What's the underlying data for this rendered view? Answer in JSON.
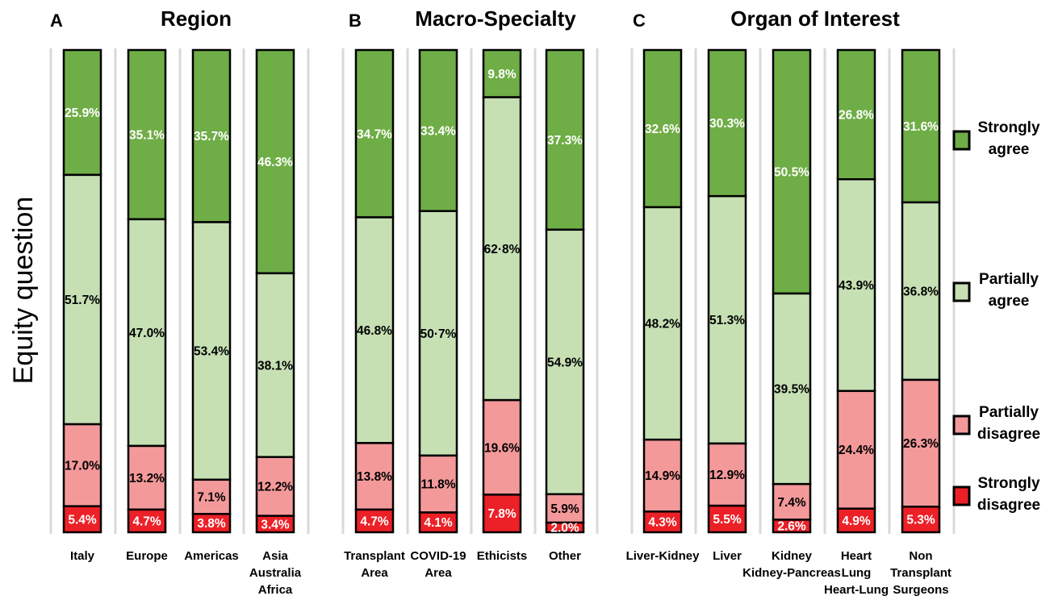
{
  "colors": {
    "strongly_agree": "#6fad46",
    "partially_agree": "#c6e0b4",
    "partially_disagree": "#f4999a",
    "strongly_disagree": "#ec2027",
    "separator": "#d9d9d9",
    "outline": "#000000"
  },
  "chart_data": {
    "type": "stacked-bar",
    "ylabel": "Equity question",
    "series": [
      {
        "key": "strongly_agree",
        "name": "Strongly agree",
        "label_color": "#ffffff"
      },
      {
        "key": "partially_agree",
        "name": "Partially agree",
        "label_color": "#000000"
      },
      {
        "key": "partially_disagree",
        "name": "Partially disagree",
        "label_color": "#000000"
      },
      {
        "key": "strongly_disagree",
        "name": "Strongly disagree",
        "label_color": "#ffffff"
      }
    ],
    "panels": [
      {
        "letter": "A",
        "title": "Region",
        "bars": [
          {
            "category": [
              "Italy"
            ],
            "values": [
              25.9,
              51.7,
              17.0,
              5.4
            ],
            "labels": [
              "25.9%",
              "51.7%",
              "17.0%",
              "5.4%"
            ]
          },
          {
            "category": [
              "Europe"
            ],
            "values": [
              35.1,
              47.0,
              13.2,
              4.7
            ],
            "labels": [
              "35.1%",
              "47.0%",
              "13.2%",
              "4.7%"
            ]
          },
          {
            "category": [
              "Americas"
            ],
            "values": [
              35.7,
              53.4,
              7.1,
              3.8
            ],
            "labels": [
              "35.7%",
              "53.4%",
              "7.1%",
              "3.8%"
            ]
          },
          {
            "category": [
              "Asia",
              "Australia",
              "Africa"
            ],
            "values": [
              46.3,
              38.1,
              12.2,
              3.4
            ],
            "labels": [
              "46.3%",
              "38.1%",
              "12.2%",
              "3.4%"
            ]
          }
        ]
      },
      {
        "letter": "B",
        "title": "Macro-Specialty",
        "bars": [
          {
            "category": [
              "Transplant",
              "Area"
            ],
            "values": [
              34.7,
              46.8,
              13.8,
              4.7
            ],
            "labels": [
              "34.7%",
              "46.8%",
              "13.8%",
              "4.7%"
            ]
          },
          {
            "category": [
              "COVID-19",
              "Area"
            ],
            "values": [
              33.4,
              50.7,
              11.8,
              4.1
            ],
            "labels": [
              "33.4%",
              "50·7%",
              "11.8%",
              "4.1%"
            ]
          },
          {
            "category": [
              "Ethicists"
            ],
            "values": [
              9.8,
              62.8,
              19.6,
              7.8
            ],
            "labels": [
              "9.8%",
              "62·8%",
              "19.6%",
              "7.8%"
            ]
          },
          {
            "category": [
              "Other"
            ],
            "values": [
              37.3,
              54.9,
              5.9,
              2.0
            ],
            "labels": [
              "37.3%",
              "54.9%",
              "5.9%",
              "2.0%"
            ]
          }
        ]
      },
      {
        "letter": "C",
        "title": "Organ of Interest",
        "bars": [
          {
            "category": [
              "Liver-Kidney"
            ],
            "values": [
              32.6,
              48.2,
              14.9,
              4.3
            ],
            "labels": [
              "32.6%",
              "48.2%",
              "14.9%",
              "4.3%"
            ]
          },
          {
            "category": [
              "Liver"
            ],
            "values": [
              30.3,
              51.3,
              12.9,
              5.5
            ],
            "labels": [
              "30.3%",
              "51.3%",
              "12.9%",
              "5.5%"
            ]
          },
          {
            "category": [
              "Kidney",
              "Kidney-Pancreas"
            ],
            "values": [
              50.5,
              39.5,
              7.4,
              2.6
            ],
            "labels": [
              "50.5%",
              "39.5%",
              "7.4%",
              "2.6%"
            ]
          },
          {
            "category": [
              "Heart",
              "Lung",
              "Heart-Lung"
            ],
            "values": [
              26.8,
              43.9,
              24.4,
              4.9
            ],
            "labels": [
              "26.8%",
              "43.9%",
              "24.4%",
              "4.9%"
            ]
          },
          {
            "category": [
              "Non",
              "Transplant",
              "Surgeons"
            ],
            "values": [
              31.6,
              36.8,
              26.3,
              5.3
            ],
            "labels": [
              "31.6%",
              "36.8%",
              "26.3%",
              "5.3%"
            ]
          }
        ]
      }
    ],
    "legend": {
      "placement": "right",
      "items": [
        {
          "key": "strongly_agree",
          "lines": [
            "Strongly",
            "agree"
          ]
        },
        {
          "key": "partially_agree",
          "lines": [
            "Partially",
            "agree"
          ]
        },
        {
          "key": "partially_disagree",
          "lines": [
            "Partially",
            "disagree"
          ]
        },
        {
          "key": "strongly_disagree",
          "lines": [
            "Strongly",
            "disagree"
          ]
        }
      ]
    }
  }
}
